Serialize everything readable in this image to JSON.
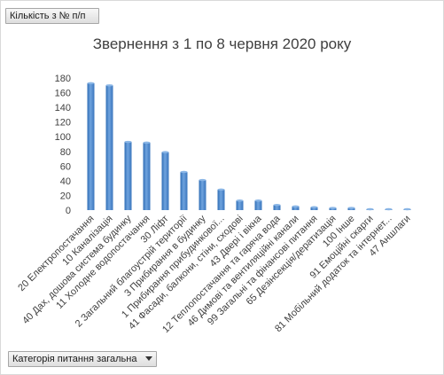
{
  "filters": {
    "values_field": "Кількість з № п/п",
    "axis_field": "Категорія питання загальна"
  },
  "chart_data": {
    "type": "bar",
    "title": "Звернення з 1 по 8 червня 2020 року",
    "categories": [
      "20 Електропостачання",
      "10 Каналізація",
      "40 Дах, дошова система будинку",
      "11 Холодне водопостачання",
      "30 Ліфт",
      "2 Загальний благоустрій території",
      "3 Прибирання в будинку",
      "1 Прибирання прибудинкової...",
      "41 Фасади, балкони, стіни, сходові",
      "43 Двері і вікна",
      "12 Теплопостачання та гаряча вода",
      "46 Димові та вентиляційні канали",
      "99 Загальні та фінансові питання",
      "65 Дезінсекція/дератизація",
      "100 Інше",
      "91 Емоційні скарги",
      "81 Мобільний додаток та інтернет...",
      "47 Аншлаги"
    ],
    "values": [
      173,
      170,
      93,
      92,
      79,
      52,
      41,
      28,
      13,
      13,
      7,
      5,
      4,
      3,
      3,
      1,
      1,
      1
    ],
    "ylim": [
      0,
      180
    ],
    "yticks": [
      0,
      20,
      40,
      60,
      80,
      100,
      120,
      140,
      160,
      180
    ],
    "grid": false,
    "legend": "none",
    "bar_color": "#4a86c8"
  }
}
